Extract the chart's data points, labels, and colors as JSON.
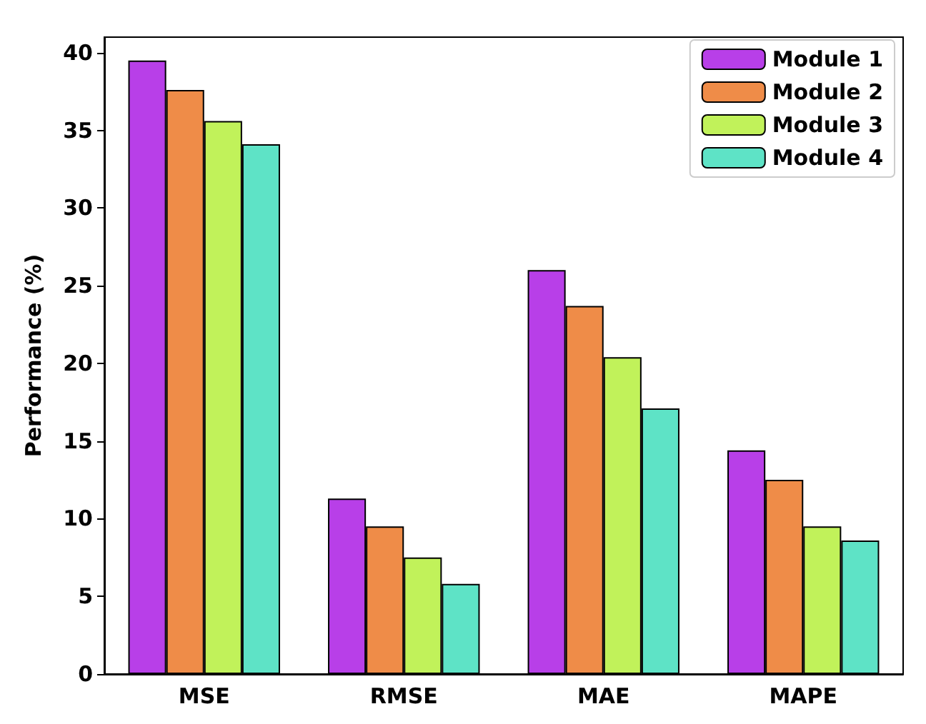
{
  "chart_data": {
    "type": "bar",
    "ylabel": "Performance (%)",
    "categories": [
      "MSE",
      "RMSE",
      "MAE",
      "MAPE"
    ],
    "series": [
      {
        "name": "Module 1",
        "color": "#b83fe8",
        "values": [
          39.5,
          11.3,
          26.0,
          14.4
        ]
      },
      {
        "name": "Module 2",
        "color": "#ef8c48",
        "values": [
          37.6,
          9.5,
          23.7,
          12.5
        ]
      },
      {
        "name": "Module 3",
        "color": "#c1f25a",
        "values": [
          35.6,
          7.5,
          20.4,
          9.5
        ]
      },
      {
        "name": "Module 4",
        "color": "#5ee3c6",
        "values": [
          34.1,
          5.8,
          17.1,
          8.6
        ]
      }
    ],
    "ylim": [
      0,
      41
    ],
    "yticks": [
      0,
      5,
      10,
      15,
      20,
      25,
      30,
      35,
      40
    ],
    "grid": false,
    "legend": "top right"
  }
}
